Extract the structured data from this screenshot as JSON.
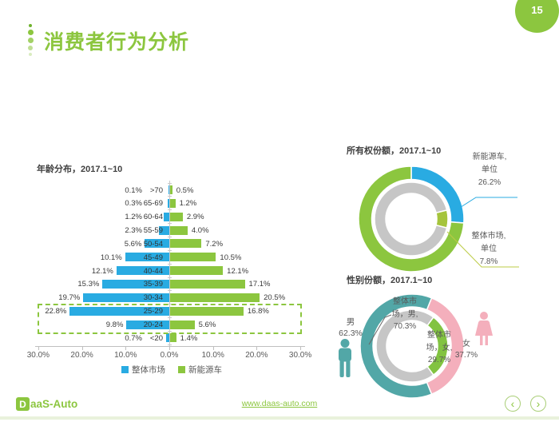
{
  "page": {
    "number": "15",
    "title": "消费者行为分析"
  },
  "footer": {
    "logo_d": "D",
    "logo_rest": "aaS-Auto",
    "url": "www.daas-auto.com",
    "prev": "‹",
    "next": "›"
  },
  "colors": {
    "brand_green": "#8CC63F",
    "market_blue": "#29ABE2",
    "teal": "#52A7A7",
    "pink": "#F4AFBC",
    "ring_gray": "#C6C6C6",
    "inner_olive": "#A5C43C",
    "inner_green": "#82C341",
    "leader_olive": "#BCCB45",
    "leader_dark": "#666666"
  },
  "chart_data": [
    {
      "type": "bar",
      "name": "age-distribution-pyramid",
      "title": "年龄分布，2017.1~10",
      "orientation": "horizontal back-to-back pyramid",
      "categories": [
        ">70",
        "65-69",
        "60-64",
        "55-59",
        "50-54",
        "45-49",
        "40-44",
        "35-39",
        "30-34",
        "25-29",
        "20-24",
        "<20"
      ],
      "series": [
        {
          "name": "整体市场",
          "side": "left",
          "color": "#29ABE2",
          "values": [
            0.1,
            0.3,
            1.2,
            2.3,
            5.6,
            10.1,
            12.1,
            15.3,
            19.7,
            22.8,
            9.8,
            0.7
          ]
        },
        {
          "name": "新能源车",
          "side": "right",
          "color": "#8CC63F",
          "values": [
            0.5,
            1.2,
            2.9,
            4.0,
            7.2,
            10.5,
            12.1,
            17.1,
            20.5,
            16.8,
            5.6,
            1.4
          ]
        }
      ],
      "x_ticks": [
        "30.0%",
        "20.0%",
        "10.0%",
        "0.0%",
        "10.0%",
        "20.0%",
        "30.0%"
      ],
      "xlim_pct": [
        0,
        30
      ],
      "highlighted_categories": [
        "25-29",
        "20-24"
      ],
      "legend_position": "bottom",
      "grid": false
    },
    {
      "type": "pie",
      "name": "ownership-share-donut",
      "title": "所有权份额，2017.1~10",
      "rings": [
        {
          "name": "新能源车",
          "position": "outer",
          "segments": [
            {
              "label": "新能源车, 单位",
              "value": 26.2,
              "color": "#29ABE2"
            },
            {
              "label": "",
              "value": 73.8,
              "color": "#8CC63F"
            }
          ]
        },
        {
          "name": "整体市场",
          "position": "inner",
          "segments": [
            {
              "label": "整体市场, 单位",
              "value": 7.8,
              "color": "#A5C43C"
            },
            {
              "label": "",
              "value": 92.2,
              "color": "#C6C6C6"
            }
          ]
        }
      ],
      "callouts": [
        {
          "lines": [
            "新能源车,",
            "单位",
            "26.2%"
          ]
        },
        {
          "lines": [
            "整体市场,",
            "单位",
            "7.8%"
          ]
        }
      ]
    },
    {
      "type": "pie",
      "name": "gender-share-donut",
      "title": "性别份额，2017.1~10",
      "rings": [
        {
          "name": "新能源车",
          "position": "outer",
          "segments": [
            {
              "label": "女",
              "value": 37.7,
              "color": "#F4AFBC"
            },
            {
              "label": "男",
              "value": 62.3,
              "color": "#52A7A7"
            }
          ]
        },
        {
          "name": "整体市场",
          "position": "inner",
          "segments": [
            {
              "label": "整体市场, 女",
              "value": 29.7,
              "color": "#82C341"
            },
            {
              "label": "整体市场, 男",
              "value": 70.3,
              "color": "#C6C6C6"
            }
          ]
        }
      ],
      "labels": {
        "male_outer": {
          "lines": [
            "男",
            "62.3%"
          ]
        },
        "male_inner": {
          "lines": [
            "整体市",
            "场，男,",
            "70.3%"
          ]
        },
        "female_inner": {
          "lines": [
            "整体市",
            "场，女,",
            "29.7%"
          ]
        },
        "female_outer": {
          "lines": [
            "女",
            "37.7%"
          ]
        }
      }
    }
  ]
}
